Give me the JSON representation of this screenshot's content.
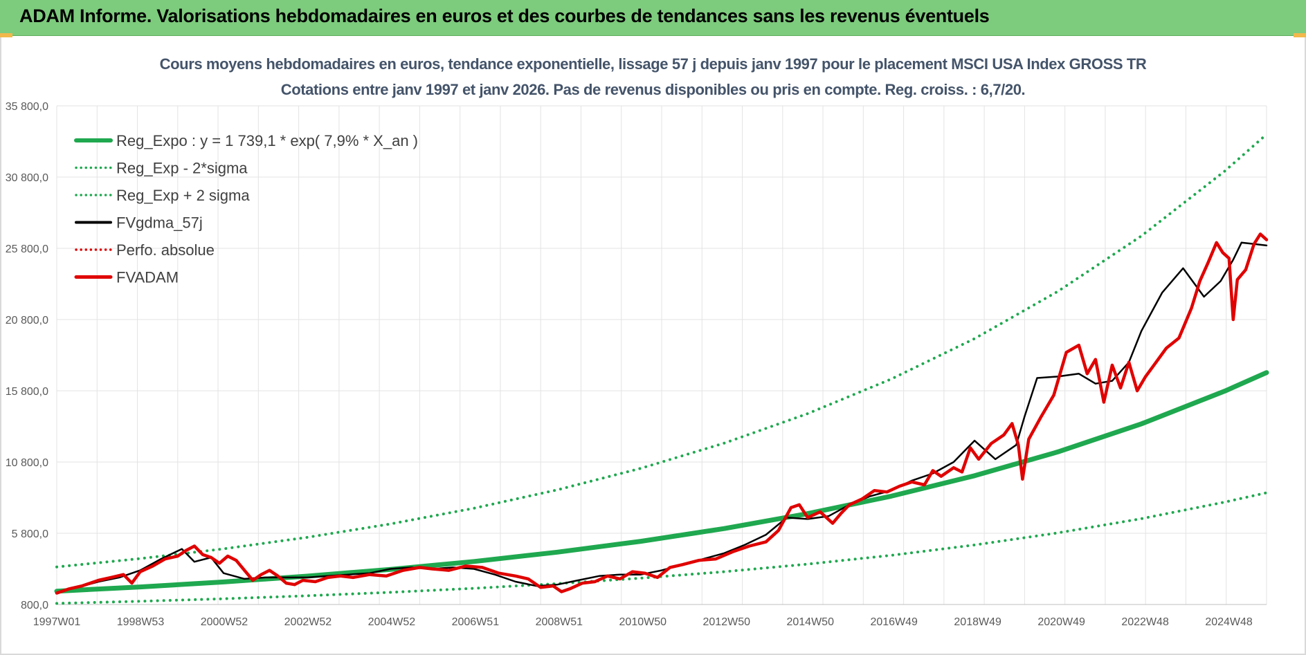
{
  "header": {
    "title": "ADAM Informe. Valorisations hebdomadaires en euros et des courbes de tendances sans les revenus éventuels"
  },
  "chart_data": {
    "type": "line",
    "title": "Cours moyens hebdomadaires en euros, tendance exponentielle, lissage 57 j depuis janv 1997 pour le placement MSCI USA Index GROSS TR",
    "subtitle": "Cotations entre janv 1997 et janv 2026. Pas de revenus disponibles ou pris en compte. Reg. croiss. : 6,7/20.",
    "xlabel": "",
    "ylabel": "",
    "x_ticks": [
      "1997W01",
      "1998W53",
      "2000W52",
      "2002W52",
      "2004W52",
      "2006W51",
      "2008W51",
      "2010W50",
      "2012W50",
      "2014W50",
      "2016W49",
      "2018W49",
      "2020W49",
      "2022W48",
      "2024W48"
    ],
    "y_ticks": [
      "800,0",
      "5 800,0",
      "10 800,0",
      "15 800,0",
      "20 800,0",
      "25 800,0",
      "30 800,0",
      "35 800,0"
    ],
    "ylim": [
      800,
      35800
    ],
    "xlim": [
      1997.0,
      2026.0
    ],
    "grid": true,
    "legend_position": "top-left",
    "series": [
      {
        "name": "Reg_Expo : y = 1 739,1 * exp( 7,9% *  X_an )",
        "style": "solid-thick",
        "color": "#1fa84f",
        "x": [
          1997.0,
          1999.0,
          2001.0,
          2003.0,
          2005.0,
          2007.0,
          2009.0,
          2011.0,
          2013.0,
          2015.0,
          2017.0,
          2019.0,
          2021.0,
          2023.0,
          2025.0,
          2026.0
        ],
        "values": [
          1739,
          2034,
          2382,
          2788,
          3264,
          3821,
          4474,
          5237,
          6131,
          7178,
          8403,
          9837,
          11515,
          13481,
          15782,
          17079
        ]
      },
      {
        "name": "Reg_Exp - 2*sigma",
        "style": "dotted",
        "color": "#1fa84f",
        "x": [
          1997.0,
          1999.0,
          2001.0,
          2003.0,
          2005.0,
          2007.0,
          2009.0,
          2011.0,
          2013.0,
          2015.0,
          2017.0,
          2019.0,
          2021.0,
          2023.0,
          2025.0,
          2026.0
        ],
        "values": [
          880,
          1030,
          1205,
          1411,
          1652,
          1934,
          2264,
          2650,
          3103,
          3633,
          4253,
          4979,
          5828,
          6823,
          7988,
          8643
        ]
      },
      {
        "name": "Reg_Exp + 2 sigma",
        "style": "dotted",
        "color": "#1fa84f",
        "x": [
          1997.0,
          1999.0,
          2001.0,
          2003.0,
          2005.0,
          2007.0,
          2009.0,
          2011.0,
          2013.0,
          2015.0,
          2017.0,
          2019.0,
          2021.0,
          2023.0,
          2025.0,
          2026.0
        ],
        "values": [
          3437,
          4023,
          4710,
          5514,
          6455,
          7558,
          8848,
          10359,
          12127,
          14197,
          16621,
          19459,
          22781,
          26670,
          31224,
          33800
        ]
      },
      {
        "name": "FVgdma_57j",
        "style": "solid",
        "color": "#000000",
        "x": [
          1997.0,
          1997.5,
          1998.0,
          1998.5,
          1999.0,
          1999.5,
          2000.0,
          2000.3,
          2000.7,
          2001.0,
          2001.5,
          2002.0,
          2002.5,
          2003.0,
          2003.5,
          2004.0,
          2004.5,
          2005.0,
          2005.5,
          2006.0,
          2006.5,
          2007.0,
          2007.5,
          2008.0,
          2008.5,
          2009.0,
          2009.5,
          2010.0,
          2010.5,
          2011.0,
          2011.5,
          2012.0,
          2012.5,
          2013.0,
          2013.5,
          2014.0,
          2014.5,
          2015.0,
          2015.5,
          2016.0,
          2016.5,
          2017.0,
          2017.5,
          2018.0,
          2018.5,
          2019.0,
          2019.5,
          2020.0,
          2020.2,
          2020.5,
          2021.0,
          2021.5,
          2021.9,
          2022.3,
          2022.7,
          2023.0,
          2023.5,
          2024.0,
          2024.5,
          2024.9,
          2025.2,
          2025.4,
          2025.7,
          2026.0
        ],
        "values": [
          1650,
          2000,
          2400,
          2700,
          3200,
          4000,
          4700,
          3800,
          4100,
          3000,
          2600,
          2700,
          2700,
          2700,
          2800,
          2900,
          3000,
          3300,
          3400,
          3300,
          3400,
          3300,
          2900,
          2400,
          2100,
          2200,
          2500,
          2800,
          2900,
          2900,
          3200,
          3600,
          4000,
          4400,
          5000,
          5700,
          6900,
          6800,
          7000,
          7800,
          8400,
          8800,
          9500,
          10000,
          10800,
          12300,
          11000,
          12000,
          14000,
          16700,
          16800,
          17000,
          16300,
          16500,
          17800,
          20000,
          22700,
          24400,
          22400,
          23500,
          25000,
          26200,
          26100,
          26000
        ]
      },
      {
        "name": "Perfo. absolue",
        "style": "dotted",
        "color": "#e00000",
        "x": [],
        "values": []
      },
      {
        "name": "FVADAM",
        "style": "solid-thick",
        "color": "#e00000",
        "x": [
          1997.0,
          1997.3,
          1997.6,
          1998.0,
          1998.3,
          1998.6,
          1998.8,
          1999.0,
          1999.3,
          1999.6,
          1999.9,
          2000.1,
          2000.3,
          2000.5,
          2000.7,
          2000.9,
          2001.1,
          2001.3,
          2001.5,
          2001.7,
          2001.9,
          2002.1,
          2002.3,
          2002.5,
          2002.7,
          2002.9,
          2003.2,
          2003.5,
          2003.8,
          2004.1,
          2004.5,
          2004.9,
          2005.3,
          2005.7,
          2006.0,
          2006.4,
          2006.8,
          2007.2,
          2007.6,
          2008.0,
          2008.3,
          2008.6,
          2008.9,
          2009.1,
          2009.3,
          2009.6,
          2009.9,
          2010.2,
          2010.5,
          2010.8,
          2011.1,
          2011.4,
          2011.7,
          2012.0,
          2012.4,
          2012.8,
          2013.2,
          2013.6,
          2014.0,
          2014.3,
          2014.6,
          2014.8,
          2015.0,
          2015.3,
          2015.6,
          2015.8,
          2016.0,
          2016.3,
          2016.6,
          2016.9,
          2017.2,
          2017.5,
          2017.8,
          2018.0,
          2018.2,
          2018.5,
          2018.7,
          2018.9,
          2019.1,
          2019.4,
          2019.7,
          2019.9,
          2020.05,
          2020.15,
          2020.3,
          2020.6,
          2020.9,
          2021.2,
          2021.5,
          2021.7,
          2021.9,
          2022.1,
          2022.3,
          2022.5,
          2022.7,
          2022.9,
          2023.1,
          2023.3,
          2023.6,
          2023.9,
          2024.2,
          2024.4,
          2024.6,
          2024.8,
          2024.95,
          2025.1,
          2025.2,
          2025.3,
          2025.5,
          2025.7,
          2025.85,
          2026.0
        ],
        "values": [
          1600,
          1900,
          2100,
          2500,
          2700,
          2900,
          2300,
          3100,
          3500,
          4000,
          4200,
          4600,
          4900,
          4300,
          4100,
          3700,
          4200,
          3900,
          3200,
          2500,
          2900,
          3200,
          2800,
          2300,
          2200,
          2500,
          2400,
          2700,
          2800,
          2700,
          2900,
          2800,
          3200,
          3400,
          3300,
          3200,
          3500,
          3400,
          3000,
          2800,
          2600,
          2000,
          2100,
          1700,
          1900,
          2300,
          2400,
          2800,
          2600,
          3100,
          3000,
          2700,
          3400,
          3600,
          3900,
          4000,
          4500,
          4900,
          5200,
          6000,
          7600,
          7800,
          6900,
          7300,
          6500,
          7200,
          7800,
          8200,
          8800,
          8700,
          9100,
          9400,
          9200,
          10200,
          9800,
          10400,
          10100,
          11800,
          11000,
          12100,
          12700,
          13500,
          12000,
          9600,
          12400,
          14000,
          15500,
          18500,
          19000,
          17000,
          18000,
          15000,
          17600,
          16000,
          17800,
          15800,
          16800,
          17600,
          18800,
          19500,
          21600,
          23500,
          24800,
          26200,
          25500,
          25100,
          20800,
          23600,
          24300,
          26100,
          26800,
          26400
        ]
      }
    ]
  }
}
